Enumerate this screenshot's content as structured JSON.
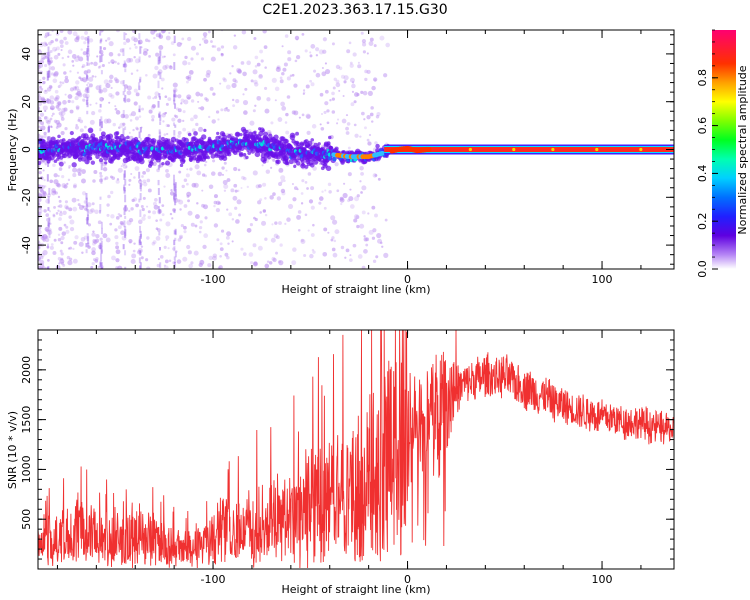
{
  "figure": {
    "title": "C2E1.2023.363.17.15.G30"
  },
  "chart_data": [
    {
      "type": "heatmap",
      "title": "",
      "xlabel": "Height of straight line (km)",
      "ylabel": "Frequency (Hz)",
      "xlim": [
        -190,
        137
      ],
      "ylim": [
        -50,
        50
      ],
      "x_ticks": [
        -100,
        0,
        100
      ],
      "y_ticks": [
        -40,
        -20,
        0,
        20,
        40
      ],
      "colorbar": {
        "label": "Normalized spectral amplitude",
        "range": [
          0,
          1
        ],
        "ticks": [
          0.0,
          0.2,
          0.4,
          0.6,
          0.8
        ]
      },
      "signal_track": {
        "x": [
          -190,
          -170,
          -150,
          -130,
          -110,
          -90,
          -80,
          -70,
          -60,
          -50,
          -40,
          -30,
          -20,
          -15,
          -10,
          -5,
          0,
          5,
          10,
          20,
          50,
          100,
          137
        ],
        "freq": [
          0,
          0.5,
          1,
          -0.5,
          0,
          2,
          3,
          1,
          -1,
          -1.5,
          -2,
          -3,
          -3,
          -2,
          -1,
          0,
          0.5,
          -0.5,
          0,
          0,
          0,
          0,
          0
        ]
      }
    },
    {
      "type": "line",
      "title": "",
      "xlabel": "Height of straight line (km)",
      "ylabel": "SNR (10 * v/v)",
      "xlim": [
        -190,
        137
      ],
      "ylim": [
        0,
        2400
      ],
      "x_ticks": [
        -100,
        0,
        100
      ],
      "y_ticks": [
        500,
        1000,
        1500,
        2000
      ],
      "series": [
        {
          "color": "#f03030",
          "x": [
            -190,
            -180,
            -170,
            -160,
            -150,
            -140,
            -130,
            -120,
            -110,
            -100,
            -90,
            -80,
            -70,
            -60,
            -50,
            -40,
            -30,
            -20,
            -10,
            0,
            10,
            20,
            30,
            40,
            50,
            60,
            70,
            80,
            90,
            100,
            110,
            120,
            130,
            137
          ],
          "y": [
            250,
            300,
            380,
            330,
            280,
            330,
            300,
            200,
            230,
            330,
            380,
            430,
            480,
            560,
            640,
            700,
            760,
            900,
            1150,
            1350,
            1500,
            1750,
            1870,
            1930,
            1920,
            1830,
            1730,
            1640,
            1580,
            1530,
            1490,
            1460,
            1420,
            1400
          ]
        }
      ]
    }
  ]
}
